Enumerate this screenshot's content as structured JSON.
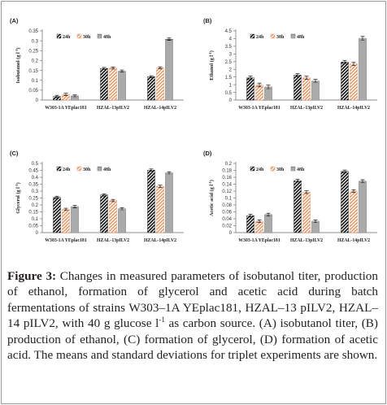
{
  "figure": {
    "caption": {
      "label": "Figure 3:",
      "text_1": " Changes in measured parameters of isobutanol titer, production of ethanol, formation of glycerol and acetic acid during batch fermentations of strains W303–1A YEplac181, HZAL–13 pILV2, HZAL–14 pILV2, with 40 g glucose l",
      "sup": "-1",
      "text_2": " as carbon source. (A) isobutanol titer, (B) production of ethanol, (C) formation of glycerol, (D) formation of acetic acid. The means and standard deviations for triplet experiments are shown."
    }
  },
  "colors": {
    "series_24h": "#111111",
    "series_30h": "#e8844a",
    "series_48h": "#555555",
    "axis": "#666666"
  },
  "chart_data": [
    {
      "type": "bar",
      "panel_label": "(A)",
      "ylabel": "Isobutanol (g l",
      "ylabel_sup": "-1",
      "ylabel_end": ")",
      "categories": [
        "W303-1A YEplac181",
        "HZAL-13pILV2",
        "HZAL-14pILV2"
      ],
      "ylim": [
        0,
        0.35
      ],
      "yticks": [
        "0",
        "0.05",
        "0.1",
        "0.15",
        "0.2",
        "0.25",
        "0.3",
        "0.35"
      ],
      "legend_position": "top-left",
      "series": [
        {
          "name": "24h",
          "values": [
            0.018,
            0.16,
            0.118
          ],
          "errors": [
            0.006,
            0.005,
            0.005
          ]
        },
        {
          "name": "30h",
          "values": [
            0.028,
            0.162,
            0.163
          ],
          "errors": [
            0.006,
            0.005,
            0.005
          ]
        },
        {
          "name": "48h",
          "values": [
            0.021,
            0.147,
            0.308
          ],
          "errors": [
            0.005,
            0.005,
            0.006
          ]
        }
      ]
    },
    {
      "type": "bar",
      "panel_label": "(B)",
      "ylabel": "Ethanol (g l",
      "ylabel_sup": "-1",
      "ylabel_end": ")",
      "categories": [
        "W303-1A YEplac181",
        "HZAL-13pILV2",
        "HZAL-14pILV2"
      ],
      "ylim": [
        0,
        4.5
      ],
      "yticks": [
        "0",
        "0.5",
        "1",
        "1.5",
        "2",
        "2.5",
        "3",
        "3.5",
        "4",
        "4.5"
      ],
      "legend_position": "top-left",
      "series": [
        {
          "name": "24h",
          "values": [
            1.45,
            1.62,
            2.48
          ],
          "errors": [
            0.12,
            0.1,
            0.1
          ]
        },
        {
          "name": "30h",
          "values": [
            0.98,
            1.45,
            2.35
          ],
          "errors": [
            0.12,
            0.1,
            0.1
          ]
        },
        {
          "name": "48h",
          "values": [
            0.85,
            1.25,
            4.02
          ],
          "errors": [
            0.12,
            0.1,
            0.12
          ]
        }
      ]
    },
    {
      "type": "bar",
      "panel_label": "(C)",
      "ylabel": "Glycerol (g l",
      "ylabel_sup": "-1",
      "ylabel_end": ")",
      "categories": [
        "W303-1A YEplac181",
        "HZAL-13pILV2",
        "HZAL-14pILV2"
      ],
      "ylim": [
        0,
        0.5
      ],
      "yticks": [
        "0",
        "0.05",
        "0.1",
        "0.15",
        "0.2",
        "0.25",
        "0.3",
        "0.35",
        "0.4",
        "0.45",
        "0.5"
      ],
      "legend_position": "top-left",
      "series": [
        {
          "name": "24h",
          "values": [
            0.255,
            0.272,
            0.452
          ],
          "errors": [
            0.008,
            0.008,
            0.008
          ]
        },
        {
          "name": "30h",
          "values": [
            0.168,
            0.232,
            0.335
          ],
          "errors": [
            0.008,
            0.008,
            0.008
          ]
        },
        {
          "name": "48h",
          "values": [
            0.188,
            0.172,
            0.432
          ],
          "errors": [
            0.008,
            0.008,
            0.008
          ]
        }
      ]
    },
    {
      "type": "bar",
      "panel_label": "(D)",
      "ylabel": "Acetic acid (g l",
      "ylabel_sup": "-1",
      "ylabel_end": ")",
      "categories": [
        "W303-1A YEplac181",
        "HZAL-13pILV2",
        "HZAL-14pILV2"
      ],
      "ylim": [
        0,
        0.2
      ],
      "yticks": [
        "0",
        "0.02",
        "0.04",
        "0.06",
        "0.08",
        "0.1",
        "0.12",
        "0.14",
        "0.16",
        "0.18",
        "0.2"
      ],
      "legend_position": "top-left",
      "series": [
        {
          "name": "24h",
          "values": [
            0.049,
            0.15,
            0.177
          ],
          "errors": [
            0.004,
            0.004,
            0.004
          ]
        },
        {
          "name": "30h",
          "values": [
            0.033,
            0.117,
            0.12
          ],
          "errors": [
            0.004,
            0.004,
            0.004
          ]
        },
        {
          "name": "48h",
          "values": [
            0.052,
            0.033,
            0.149
          ],
          "errors": [
            0.004,
            0.004,
            0.004
          ]
        }
      ]
    }
  ]
}
